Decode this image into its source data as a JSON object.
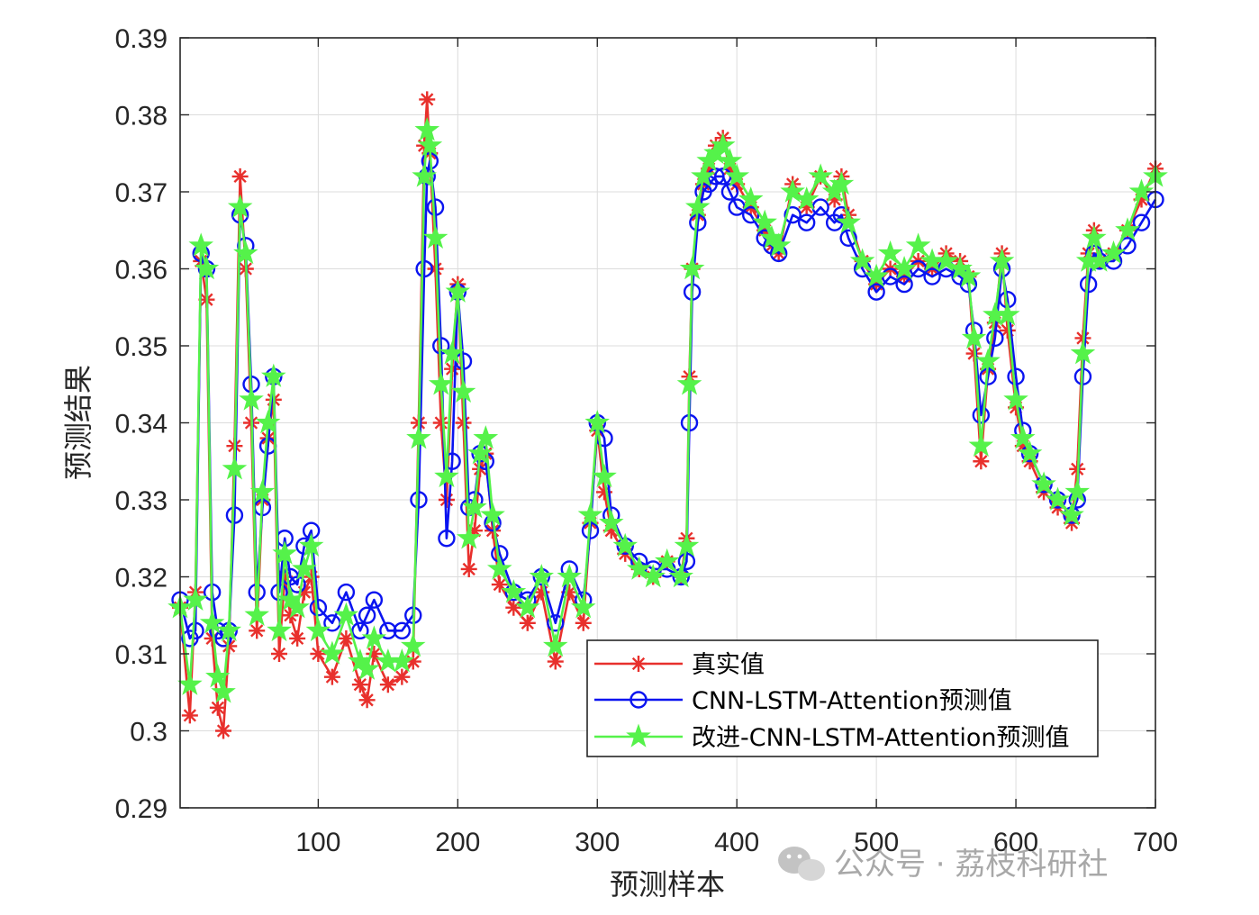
{
  "chart_data": {
    "type": "line",
    "title": "",
    "xlabel": "预测样本",
    "ylabel": "预测结果",
    "xlim": [
      1,
      700
    ],
    "ylim": [
      0.29,
      0.39
    ],
    "x_ticks": [
      100,
      200,
      300,
      400,
      500,
      600,
      700
    ],
    "x_tick_labels": [
      "100",
      "200",
      "300",
      "400",
      "500",
      "600",
      "700"
    ],
    "y_ticks": [
      0.29,
      0.3,
      0.31,
      0.32,
      0.33,
      0.34,
      0.35,
      0.36,
      0.37,
      0.38,
      0.39
    ],
    "y_tick_labels": [
      "0.29",
      "0.3",
      "0.31",
      "0.32",
      "0.33",
      "0.34",
      "0.35",
      "0.36",
      "0.37",
      "0.38",
      "0.39"
    ],
    "grid": true,
    "legend_position": "bottom-right",
    "x_anchor": [
      1,
      8,
      12,
      16,
      20,
      24,
      28,
      32,
      36,
      40,
      44,
      48,
      52,
      56,
      60,
      64,
      68,
      72,
      76,
      80,
      85,
      90,
      95,
      100,
      110,
      120,
      130,
      135,
      140,
      150,
      160,
      168,
      172,
      176,
      178,
      180,
      184,
      188,
      192,
      196,
      200,
      204,
      208,
      212,
      216,
      220,
      225,
      230,
      240,
      250,
      260,
      270,
      280,
      290,
      295,
      300,
      305,
      310,
      320,
      330,
      340,
      350,
      360,
      364,
      366,
      368,
      372,
      376,
      380,
      385,
      390,
      395,
      400,
      410,
      420,
      425,
      430,
      440,
      450,
      460,
      470,
      475,
      480,
      490,
      500,
      510,
      520,
      530,
      540,
      550,
      560,
      566,
      570,
      575,
      580,
      585,
      590,
      594,
      600,
      605,
      610,
      620,
      630,
      640,
      644,
      648,
      652,
      656,
      660,
      670,
      680,
      690,
      700
    ],
    "series": [
      {
        "name": "真实值",
        "color": "#e8302c",
        "marker": "asterisk",
        "values": [
          0.316,
          0.302,
          0.318,
          0.361,
          0.356,
          0.312,
          0.303,
          0.3,
          0.311,
          0.337,
          0.372,
          0.36,
          0.34,
          0.313,
          0.33,
          0.338,
          0.343,
          0.31,
          0.32,
          0.315,
          0.312,
          0.318,
          0.32,
          0.31,
          0.307,
          0.312,
          0.306,
          0.304,
          0.31,
          0.306,
          0.307,
          0.309,
          0.34,
          0.376,
          0.382,
          0.375,
          0.36,
          0.34,
          0.33,
          0.347,
          0.358,
          0.34,
          0.321,
          0.326,
          0.334,
          0.336,
          0.326,
          0.319,
          0.316,
          0.314,
          0.318,
          0.309,
          0.318,
          0.314,
          0.327,
          0.339,
          0.331,
          0.326,
          0.323,
          0.321,
          0.32,
          0.322,
          0.32,
          0.325,
          0.346,
          0.36,
          0.367,
          0.371,
          0.373,
          0.376,
          0.377,
          0.373,
          0.371,
          0.368,
          0.365,
          0.363,
          0.362,
          0.371,
          0.368,
          0.372,
          0.369,
          0.372,
          0.367,
          0.361,
          0.358,
          0.36,
          0.359,
          0.361,
          0.36,
          0.362,
          0.361,
          0.359,
          0.349,
          0.335,
          0.347,
          0.353,
          0.362,
          0.352,
          0.342,
          0.337,
          0.335,
          0.331,
          0.329,
          0.327,
          0.334,
          0.351,
          0.362,
          0.365,
          0.361,
          0.362,
          0.365,
          0.369,
          0.373
        ]
      },
      {
        "name": "CNN-LSTM-Attention预测值",
        "color": "#0a14f0",
        "marker": "circle",
        "values": [
          0.317,
          0.312,
          0.313,
          0.362,
          0.36,
          0.318,
          0.313,
          0.312,
          0.313,
          0.328,
          0.367,
          0.363,
          0.345,
          0.318,
          0.329,
          0.337,
          0.346,
          0.318,
          0.325,
          0.32,
          0.319,
          0.324,
          0.326,
          0.316,
          0.314,
          0.318,
          0.313,
          0.315,
          0.317,
          0.313,
          0.313,
          0.315,
          0.33,
          0.36,
          0.372,
          0.374,
          0.368,
          0.35,
          0.325,
          0.335,
          0.357,
          0.348,
          0.329,
          0.33,
          0.336,
          0.335,
          0.327,
          0.323,
          0.318,
          0.317,
          0.32,
          0.314,
          0.321,
          0.317,
          0.326,
          0.34,
          0.338,
          0.328,
          0.324,
          0.322,
          0.321,
          0.321,
          0.32,
          0.322,
          0.34,
          0.357,
          0.366,
          0.37,
          0.371,
          0.372,
          0.372,
          0.37,
          0.368,
          0.367,
          0.364,
          0.363,
          0.362,
          0.367,
          0.366,
          0.368,
          0.366,
          0.367,
          0.364,
          0.36,
          0.357,
          0.359,
          0.358,
          0.36,
          0.359,
          0.36,
          0.359,
          0.358,
          0.352,
          0.341,
          0.346,
          0.351,
          0.36,
          0.356,
          0.346,
          0.339,
          0.336,
          0.332,
          0.33,
          0.328,
          0.33,
          0.346,
          0.358,
          0.362,
          0.361,
          0.361,
          0.363,
          0.366,
          0.369
        ]
      },
      {
        "name": "改进-CNN-LSTM-Attention预测值",
        "color": "#55f24a",
        "marker": "pentagram",
        "values": [
          0.316,
          0.306,
          0.317,
          0.363,
          0.36,
          0.314,
          0.307,
          0.305,
          0.313,
          0.334,
          0.368,
          0.362,
          0.343,
          0.315,
          0.331,
          0.34,
          0.346,
          0.313,
          0.323,
          0.317,
          0.316,
          0.321,
          0.324,
          0.313,
          0.31,
          0.315,
          0.309,
          0.308,
          0.312,
          0.309,
          0.309,
          0.311,
          0.338,
          0.372,
          0.378,
          0.376,
          0.364,
          0.345,
          0.333,
          0.349,
          0.357,
          0.344,
          0.325,
          0.329,
          0.336,
          0.338,
          0.328,
          0.321,
          0.318,
          0.316,
          0.32,
          0.311,
          0.32,
          0.316,
          0.328,
          0.34,
          0.333,
          0.327,
          0.324,
          0.321,
          0.32,
          0.322,
          0.32,
          0.324,
          0.345,
          0.36,
          0.368,
          0.372,
          0.374,
          0.375,
          0.376,
          0.374,
          0.372,
          0.369,
          0.366,
          0.364,
          0.363,
          0.37,
          0.369,
          0.372,
          0.37,
          0.371,
          0.366,
          0.361,
          0.359,
          0.362,
          0.36,
          0.363,
          0.361,
          0.361,
          0.36,
          0.359,
          0.351,
          0.337,
          0.348,
          0.354,
          0.361,
          0.354,
          0.343,
          0.338,
          0.336,
          0.332,
          0.33,
          0.328,
          0.331,
          0.349,
          0.361,
          0.364,
          0.361,
          0.362,
          0.365,
          0.37,
          0.372
        ]
      }
    ]
  },
  "watermark": {
    "text": "公众号 · 荔枝科研社",
    "icon": "wechat-icon"
  }
}
